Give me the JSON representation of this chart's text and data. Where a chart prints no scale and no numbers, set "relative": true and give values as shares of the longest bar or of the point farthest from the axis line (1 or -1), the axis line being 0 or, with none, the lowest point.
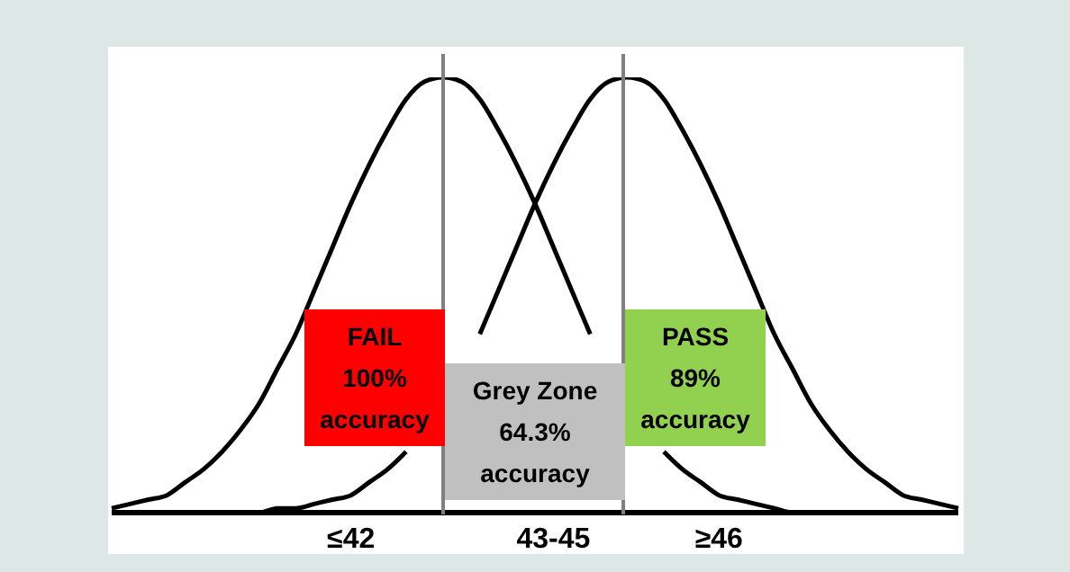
{
  "chart_data": {
    "type": "line",
    "relative": true,
    "marker": "none",
    "line_style": "solid",
    "categories": [
      null,
      null,
      null,
      null,
      null,
      null,
      null,
      null,
      null,
      null,
      null,
      null,
      null,
      "≤42",
      null,
      null,
      null,
      null,
      null,
      null,
      null,
      null,
      null,
      null,
      "43-45",
      null,
      null,
      null,
      null,
      null,
      null,
      null,
      null,
      "≥46",
      null,
      null,
      null,
      null,
      null,
      null,
      null,
      null,
      null,
      null,
      null,
      null,
      null
    ],
    "series": [
      {
        "color": "#000000",
        "values": [
          0.01,
          0.02,
          0.03,
          0.04,
          0.07,
          0.1,
          0.14,
          0.19,
          0.25,
          0.33,
          0.41,
          0.51,
          0.61,
          0.71,
          0.8,
          0.88,
          0.95,
          0.99,
          1,
          0.99,
          0.95,
          0.88,
          0.8,
          0.71,
          0.61,
          0.51,
          0.41,
          null,
          null,
          null,
          0.14,
          0.1,
          0.07,
          0.04,
          0.03,
          0.02,
          0.01,
          0,
          0,
          0,
          0,
          0,
          0,
          0,
          0,
          0,
          0
        ]
      },
      {
        "color": "#000000",
        "values": [
          0,
          0,
          0,
          0,
          0,
          0,
          0,
          0,
          0,
          0.01,
          0.01,
          0.02,
          0.03,
          0.04,
          0.07,
          0.1,
          0.14,
          null,
          null,
          null,
          0.41,
          0.51,
          0.61,
          0.71,
          0.8,
          0.88,
          0.95,
          0.99,
          1,
          0.99,
          0.95,
          0.88,
          0.8,
          0.71,
          0.61,
          0.51,
          0.41,
          0.33,
          0.25,
          0.19,
          0.14,
          0.1,
          0.07,
          0.04,
          0.03,
          0.02,
          0.01
        ]
      }
    ],
    "annotations": [
      "FAIL\n100%\naccuracy",
      "Grey Zone\n64.3%\naccuracy",
      "PASS\n89%\naccuracy"
    ]
  }
}
